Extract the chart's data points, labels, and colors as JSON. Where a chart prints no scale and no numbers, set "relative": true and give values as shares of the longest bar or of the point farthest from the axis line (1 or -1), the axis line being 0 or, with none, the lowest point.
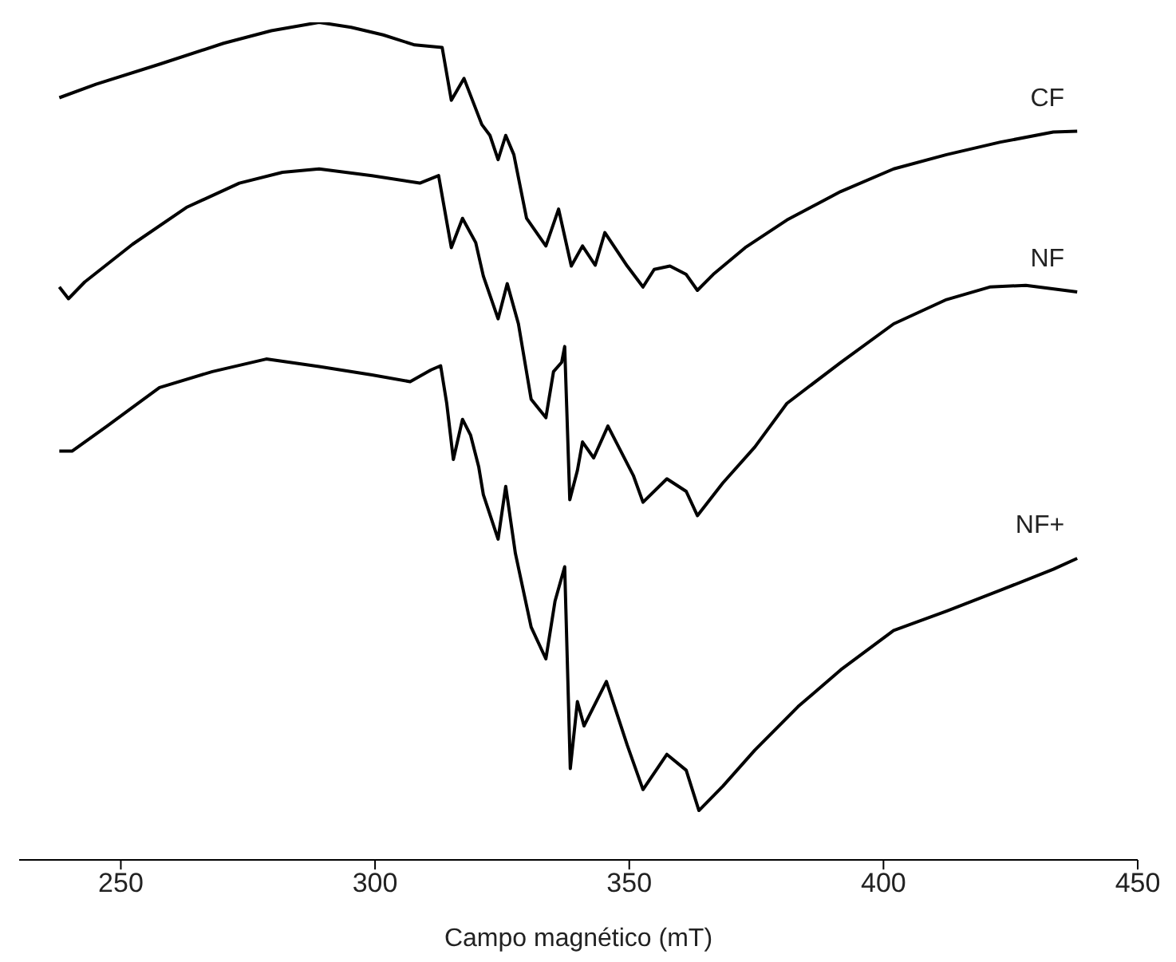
{
  "chart_data": {
    "type": "line",
    "xlabel": "Campo magnético (mT)",
    "xlim": [
      230,
      450
    ],
    "xticks": [
      250,
      300,
      350,
      400,
      450
    ],
    "relative": true,
    "series": [
      {
        "name": "CF",
        "color": "#000000",
        "x": [
          237.9,
          245.1,
          257.6,
          270.2,
          279.6,
          289.0,
          295.3,
          301.6,
          307.8,
          313.2,
          315.0,
          317.5,
          321.0,
          322.6,
          324.2,
          325.7,
          327.3,
          329.8,
          333.6,
          336.1,
          338.6,
          340.8,
          343.3,
          345.2,
          349.6,
          352.7,
          354.9,
          358.0,
          361.2,
          363.4,
          366.5,
          372.8,
          381.0,
          391.6,
          402.0,
          412.4,
          423.0,
          433.4,
          438.1
        ],
        "values": [
          0.91,
          0.926,
          0.95,
          0.975,
          0.99,
          1.0,
          0.994,
          0.985,
          0.973,
          0.97,
          0.907,
          0.933,
          0.878,
          0.865,
          0.836,
          0.865,
          0.842,
          0.766,
          0.733,
          0.777,
          0.709,
          0.733,
          0.71,
          0.749,
          0.709,
          0.684,
          0.705,
          0.709,
          0.699,
          0.68,
          0.699,
          0.731,
          0.764,
          0.798,
          0.825,
          0.842,
          0.857,
          0.869,
          0.87
        ]
      },
      {
        "name": "NF",
        "color": "#000000",
        "x": [
          237.9,
          239.7,
          242.9,
          252.3,
          262.9,
          273.3,
          281.8,
          289.0,
          299.4,
          308.8,
          312.5,
          315.0,
          317.2,
          319.8,
          321.3,
          324.2,
          326.0,
          328.2,
          330.7,
          333.6,
          335.1,
          336.7,
          337.3,
          338.3,
          339.8,
          340.8,
          343.0,
          345.8,
          350.8,
          352.7,
          357.4,
          361.2,
          363.4,
          368.4,
          374.7,
          381.0,
          391.6,
          402.0,
          412.4,
          420.9,
          428.0,
          438.1
        ],
        "values": [
          0.684,
          0.67,
          0.69,
          0.735,
          0.779,
          0.808,
          0.821,
          0.825,
          0.817,
          0.808,
          0.817,
          0.731,
          0.766,
          0.737,
          0.697,
          0.646,
          0.688,
          0.64,
          0.55,
          0.528,
          0.583,
          0.594,
          0.613,
          0.43,
          0.465,
          0.499,
          0.48,
          0.518,
          0.459,
          0.427,
          0.455,
          0.44,
          0.411,
          0.45,
          0.493,
          0.545,
          0.594,
          0.64,
          0.669,
          0.684,
          0.686,
          0.678
        ]
      },
      {
        "name": "NF+",
        "color": "#000000",
        "x": [
          237.9,
          240.4,
          247.3,
          257.6,
          268.0,
          278.6,
          289.0,
          299.4,
          306.9,
          311.0,
          312.9,
          314.1,
          315.4,
          317.2,
          318.8,
          320.4,
          321.3,
          324.2,
          325.7,
          327.6,
          330.7,
          333.6,
          335.4,
          337.3,
          338.4,
          339.8,
          341.1,
          345.5,
          349.6,
          352.7,
          357.4,
          361.2,
          363.7,
          368.4,
          374.7,
          383.2,
          391.6,
          402.0,
          412.4,
          423.0,
          433.4,
          438.1
        ],
        "values": [
          0.488,
          0.488,
          0.518,
          0.564,
          0.583,
          0.598,
          0.589,
          0.579,
          0.571,
          0.585,
          0.59,
          0.545,
          0.478,
          0.526,
          0.507,
          0.469,
          0.436,
          0.383,
          0.446,
          0.366,
          0.278,
          0.24,
          0.309,
          0.35,
          0.109,
          0.189,
          0.16,
          0.213,
          0.137,
          0.084,
          0.126,
          0.107,
          0.059,
          0.088,
          0.131,
          0.183,
          0.227,
          0.274,
          0.297,
          0.322,
          0.347,
          0.36
        ]
      }
    ]
  }
}
